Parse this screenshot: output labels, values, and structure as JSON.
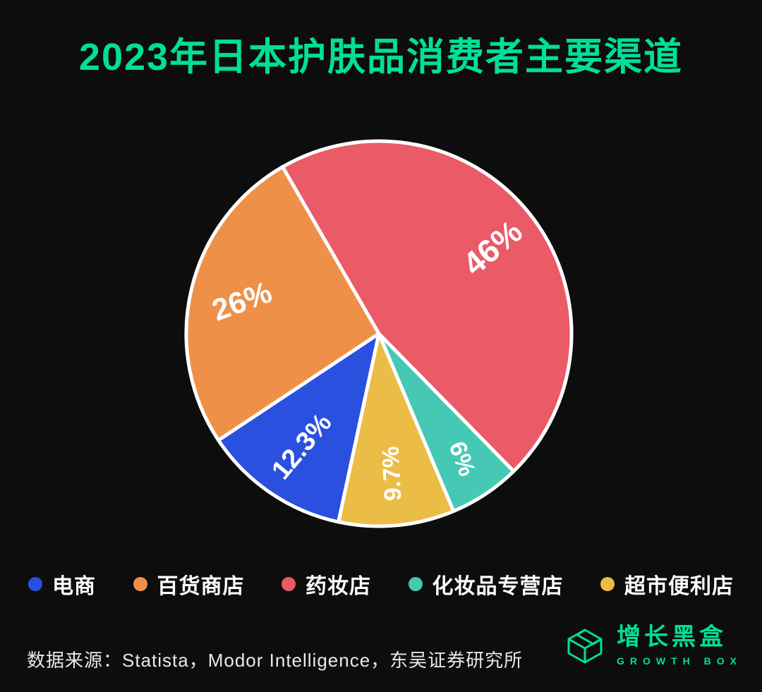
{
  "title": "2023年日本护肤品消费者主要渠道",
  "chart_data": {
    "type": "pie",
    "title": "2023年日本护肤品消费者主要渠道",
    "start_angle_deg_from_top": -30,
    "direction": "clockwise",
    "unit": "%",
    "slices": [
      {
        "label": "药妆店",
        "value": 46,
        "display": "46%",
        "color": "#ea5a67"
      },
      {
        "label": "化妆品专营店",
        "value": 6,
        "display": "6%",
        "color": "#45c9b4"
      },
      {
        "label": "超市便利店",
        "value": 9.7,
        "display": "9.7%",
        "color": "#ebbc46"
      },
      {
        "label": "电商",
        "value": 12.3,
        "display": "12.3%",
        "color": "#2a50df"
      },
      {
        "label": "百货商店",
        "value": 26,
        "display": "26%",
        "color": "#ee9048"
      }
    ],
    "legend": [
      {
        "label": "电商",
        "color": "#2a50df"
      },
      {
        "label": "百货商店",
        "color": "#ee9048"
      },
      {
        "label": "药妆店",
        "color": "#ea5a67"
      },
      {
        "label": "化妆品专营店",
        "color": "#45c9b4"
      },
      {
        "label": "超市便利店",
        "color": "#ebbc46"
      }
    ],
    "legend_position": "bottom"
  },
  "footer": {
    "source": "数据来源：Statista，Modor Intelligence，东吴证券研究所"
  },
  "logo": {
    "name": "增长黑盒",
    "subtitle": "GROWTH BOX",
    "icon": "open-box-icon",
    "color": "#00df98"
  },
  "colors": {
    "background": "#0d0d0d",
    "title": "#00df98",
    "slice_border": "#ffffff",
    "label_text": "#ffffff",
    "legend_text": "#ffffff",
    "source_text": "#e9e9e9"
  }
}
